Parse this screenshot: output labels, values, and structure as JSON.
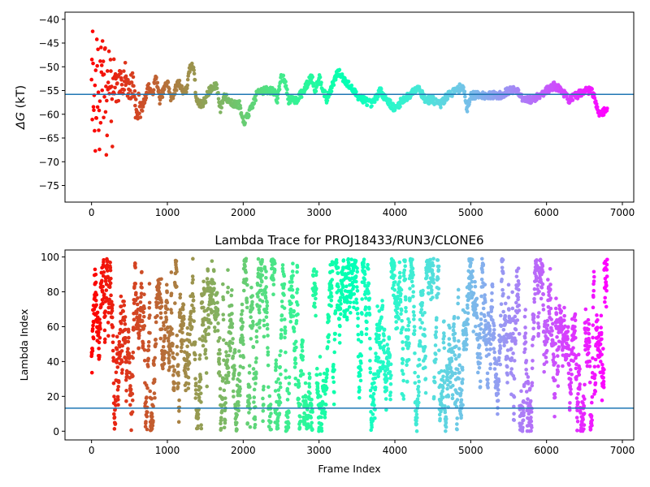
{
  "chart_data": [
    {
      "type": "scatter",
      "title": "",
      "xlabel": "",
      "ylabel": "ΔG (kT)",
      "ylabel_symbol": "ΔG",
      "ylabel_unit": "(kT)",
      "xlim": [
        -350,
        7150
      ],
      "ylim": [
        -78.5,
        -38.5
      ],
      "xticks": [
        0,
        1000,
        2000,
        3000,
        4000,
        5000,
        6000,
        7000
      ],
      "xtick_labels": [
        "0",
        "1000",
        "2000",
        "3000",
        "4000",
        "5000",
        "6000",
        "7000"
      ],
      "yticks": [
        -75,
        -70,
        -65,
        -60,
        -55,
        -50,
        -45,
        -40
      ],
      "ytick_labels": [
        "−75",
        "−70",
        "−65",
        "−60",
        "−55",
        "−50",
        "−45",
        "−40"
      ],
      "hline": -55.8,
      "hline_color": "#1f77b4",
      "colormap": "rainbow (red at frame 0 to violet at last frame)",
      "grid": false,
      "n_frames": 6800,
      "trace_points": [
        [
          0,
          -48
        ],
        [
          20,
          -58
        ],
        [
          40,
          -62
        ],
        [
          60,
          -55
        ],
        [
          80,
          -51
        ],
        [
          100,
          -63
        ],
        [
          120,
          -56
        ],
        [
          140,
          -46
        ],
        [
          160,
          -59
        ],
        [
          180,
          -53
        ],
        [
          200,
          -63
        ],
        [
          220,
          -48
        ],
        [
          250,
          -55
        ],
        [
          280,
          -60
        ],
        [
          300,
          -53
        ],
        [
          330,
          -56
        ],
        [
          360,
          -54
        ],
        [
          400,
          -53
        ],
        [
          450,
          -52
        ],
        [
          500,
          -55
        ],
        [
          550,
          -53
        ],
        [
          600,
          -61
        ],
        [
          630,
          -57
        ],
        [
          660,
          -59
        ],
        [
          700,
          -57
        ],
        [
          750,
          -54
        ],
        [
          800,
          -56
        ],
        [
          850,
          -52
        ],
        [
          900,
          -57
        ],
        [
          950,
          -55
        ],
        [
          1000,
          -53
        ],
        [
          1050,
          -57
        ],
        [
          1100,
          -55
        ],
        [
          1150,
          -53
        ],
        [
          1200,
          -55
        ],
        [
          1250,
          -55
        ],
        [
          1300,
          -50
        ],
        [
          1350,
          -50
        ],
        [
          1380,
          -57
        ],
        [
          1450,
          -58
        ],
        [
          1500,
          -57
        ],
        [
          1550,
          -55
        ],
        [
          1650,
          -54
        ],
        [
          1700,
          -59
        ],
        [
          1750,
          -56
        ],
        [
          1800,
          -57
        ],
        [
          1900,
          -58
        ],
        [
          1950,
          -58
        ],
        [
          2000,
          -62
        ],
        [
          2100,
          -59
        ],
        [
          2200,
          -55
        ],
        [
          2300,
          -55
        ],
        [
          2400,
          -55
        ],
        [
          2450,
          -57
        ],
        [
          2500,
          -52
        ],
        [
          2550,
          -53
        ],
        [
          2600,
          -57
        ],
        [
          2700,
          -57
        ],
        [
          2800,
          -55
        ],
        [
          2900,
          -52
        ],
        [
          2950,
          -55
        ],
        [
          3000,
          -52
        ],
        [
          3100,
          -57
        ],
        [
          3200,
          -53
        ],
        [
          3250,
          -51
        ],
        [
          3300,
          -52
        ],
        [
          3400,
          -54
        ],
        [
          3500,
          -56
        ],
        [
          3600,
          -57
        ],
        [
          3700,
          -58
        ],
        [
          3800,
          -55
        ],
        [
          3900,
          -57
        ],
        [
          4000,
          -59
        ],
        [
          4100,
          -57
        ],
        [
          4200,
          -56
        ],
        [
          4300,
          -54
        ],
        [
          4400,
          -57
        ],
        [
          4500,
          -57
        ],
        [
          4600,
          -58
        ],
        [
          4700,
          -56
        ],
        [
          4800,
          -55
        ],
        [
          4900,
          -54
        ],
        [
          4950,
          -59
        ],
        [
          5000,
          -56
        ],
        [
          5200,
          -56
        ],
        [
          5300,
          -56
        ],
        [
          5400,
          -56
        ],
        [
          5500,
          -55
        ],
        [
          5600,
          -55
        ],
        [
          5700,
          -57
        ],
        [
          5800,
          -57
        ],
        [
          5900,
          -56
        ],
        [
          6000,
          -55
        ],
        [
          6100,
          -54
        ],
        [
          6200,
          -55
        ],
        [
          6300,
          -57
        ],
        [
          6400,
          -56
        ],
        [
          6500,
          -55
        ],
        [
          6600,
          -55
        ],
        [
          6700,
          -60
        ],
        [
          6800,
          -59
        ]
      ]
    },
    {
      "type": "scatter",
      "title": "Lambda Trace for PROJ18433/RUN3/CLONE6",
      "xlabel": "Frame Index",
      "ylabel": "Lambda Index",
      "xlim": [
        -350,
        7150
      ],
      "ylim": [
        -5,
        104
      ],
      "xticks": [
        0,
        1000,
        2000,
        3000,
        4000,
        5000,
        6000,
        7000
      ],
      "xtick_labels": [
        "0",
        "1000",
        "2000",
        "3000",
        "4000",
        "5000",
        "6000",
        "7000"
      ],
      "yticks": [
        0,
        20,
        40,
        60,
        80,
        100
      ],
      "ytick_labels": [
        "0",
        "20",
        "40",
        "60",
        "80",
        "100"
      ],
      "hline": 13.2,
      "hline_color": "#1f77b4",
      "colormap": "rainbow (red at frame 0 to violet at last frame)",
      "grid": false,
      "n_frames": 6800,
      "lambda_range": [
        0,
        99
      ]
    }
  ]
}
